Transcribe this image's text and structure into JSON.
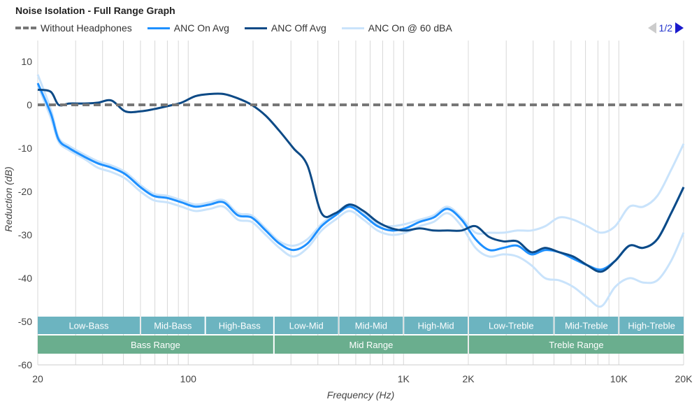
{
  "chart_data": {
    "type": "line",
    "title": "Noise Isolation - Full Range Graph",
    "xlabel": "Frequency (Hz)",
    "ylabel": "Reduction (dB)",
    "xscale": "log",
    "xlim": [
      20,
      20000
    ],
    "ylim": [
      -60,
      10
    ],
    "grid": true,
    "legend_position": "top-left",
    "x_ticks": [
      {
        "v": 20,
        "label": "20"
      },
      {
        "v": 100,
        "label": "100"
      },
      {
        "v": 1000,
        "label": "1K"
      },
      {
        "v": 2000,
        "label": "2K"
      },
      {
        "v": 10000,
        "label": "10K"
      },
      {
        "v": 20000,
        "label": "20K"
      }
    ],
    "y_ticks": [
      10,
      0,
      -10,
      -20,
      -30,
      -40,
      -50,
      -60
    ],
    "x": [
      20,
      23,
      25,
      28,
      33,
      38,
      44,
      51,
      60,
      69,
      80,
      93,
      108,
      126,
      146,
      170,
      197,
      229,
      265,
      308,
      358,
      416,
      483,
      561,
      652,
      757,
      879,
      1020,
      1190,
      1380,
      1600,
      1860,
      2160,
      2500,
      2910,
      3380,
      3920,
      4550,
      5280,
      6140,
      7130,
      8280,
      9620,
      11200,
      13000,
      15100,
      17500,
      20000
    ],
    "series": [
      {
        "name": "Without Headphones",
        "color": "#777777",
        "dash": true,
        "values": [
          0,
          0,
          0,
          0,
          0,
          0,
          0,
          0,
          0,
          0,
          0,
          0,
          0,
          0,
          0,
          0,
          0,
          0,
          0,
          0,
          0,
          0,
          0,
          0,
          0,
          0,
          0,
          0,
          0,
          0,
          0,
          0,
          0,
          0,
          0,
          0,
          0,
          0,
          0,
          0,
          0,
          0,
          0,
          0,
          0,
          0,
          0,
          0
        ]
      },
      {
        "name": "ANC On @ 60 dBA",
        "color": "#c9e3fb",
        "values": [
          7,
          -1,
          -7.5,
          -9.5,
          -11.5,
          -13,
          -14,
          -15.5,
          -18.5,
          -20.5,
          -21,
          -22,
          -23,
          -22.5,
          -22,
          -25,
          -25.5,
          -28.5,
          -31.5,
          -32.5,
          -31,
          -27.5,
          -25,
          -23,
          -25,
          -27.5,
          -28,
          -27.5,
          -26.5,
          -25.5,
          -23.5,
          -26,
          -29.5,
          -29.5,
          -29.5,
          -29,
          -29,
          -28,
          -26,
          -26.5,
          -28,
          -29.5,
          -28,
          -23.5,
          -23.5,
          -21,
          -15,
          -9
        ]
      },
      {
        "name": "",
        "color": "#c9e3fb",
        "values": [
          4.5,
          -3,
          -8.5,
          -10.5,
          -12.5,
          -14.5,
          -15.5,
          -17,
          -20,
          -22,
          -22.5,
          -23.5,
          -24.5,
          -24,
          -23.5,
          -26.5,
          -27,
          -30,
          -33,
          -35,
          -33,
          -29,
          -26.5,
          -24.5,
          -26.5,
          -29,
          -30,
          -29.5,
          -28,
          -27,
          -25,
          -28,
          -33,
          -35,
          -34.5,
          -35,
          -37,
          -40,
          -40.5,
          -42,
          -44.5,
          -46.5,
          -42,
          -40,
          -41,
          -40.5,
          -36,
          -29.5
        ]
      },
      {
        "name": "ANC Off Avg",
        "color": "#0d4a86",
        "values": [
          3.5,
          3,
          0,
          0.3,
          0.3,
          0.5,
          1,
          -1.5,
          -1.5,
          -1,
          -0.3,
          0.5,
          2,
          2.5,
          2.5,
          1.5,
          0,
          -2.5,
          -6,
          -10,
          -14,
          -25,
          -25,
          -23,
          -24.5,
          -27,
          -28.5,
          -29,
          -28.5,
          -29,
          -29,
          -29,
          -28,
          -30.5,
          -31.5,
          -31.5,
          -34,
          -33,
          -34,
          -35,
          -37,
          -38.5,
          -36,
          -32.5,
          -33,
          -31,
          -25,
          -19
        ]
      },
      {
        "name": "ANC On Avg",
        "color": "#1e90ff",
        "values": [
          5,
          -2,
          -8,
          -10,
          -12,
          -13.5,
          -14.5,
          -16,
          -19,
          -21,
          -21.5,
          -22.5,
          -23.5,
          -23,
          -22.5,
          -25.5,
          -26,
          -29,
          -32,
          -33.5,
          -32,
          -28,
          -25.5,
          -23.5,
          -25.5,
          -28,
          -29,
          -28.5,
          -27,
          -26,
          -24,
          -26.5,
          -31,
          -33.5,
          -33,
          -32.5,
          -34.5,
          -33.5,
          -34,
          -35.5,
          -37,
          -38,
          -36,
          -32.5,
          -33,
          -31,
          -25,
          -19
        ]
      }
    ],
    "bands": [
      {
        "label": "Low-Bass",
        "from": 20,
        "to": 60
      },
      {
        "label": "Mid-Bass",
        "from": 60,
        "to": 120
      },
      {
        "label": "High-Bass",
        "from": 120,
        "to": 250
      },
      {
        "label": "Low-Mid",
        "from": 250,
        "to": 500
      },
      {
        "label": "Mid-Mid",
        "from": 500,
        "to": 1000
      },
      {
        "label": "High-Mid",
        "from": 1000,
        "to": 2000
      },
      {
        "label": "Low-Treble",
        "from": 2000,
        "to": 5000
      },
      {
        "label": "Mid-Treble",
        "from": 5000,
        "to": 10000
      },
      {
        "label": "High-Treble",
        "from": 10000,
        "to": 20000
      }
    ],
    "ranges": [
      {
        "label": "Bass Range",
        "from": 20,
        "to": 250
      },
      {
        "label": "Mid Range",
        "from": 250,
        "to": 2000
      },
      {
        "label": "Treble Range",
        "from": 2000,
        "to": 20000
      }
    ],
    "band_color": "#6cb4c0",
    "range_color": "#6aae8e"
  },
  "legend": [
    "Without Headphones",
    "ANC On Avg",
    "ANC Off Avg",
    "ANC On @ 60 dBA"
  ],
  "legend_colors": [
    "#777777",
    "#1e90ff",
    "#0d4a86",
    "#c9e3fb"
  ],
  "nav": {
    "page": "1/2"
  }
}
